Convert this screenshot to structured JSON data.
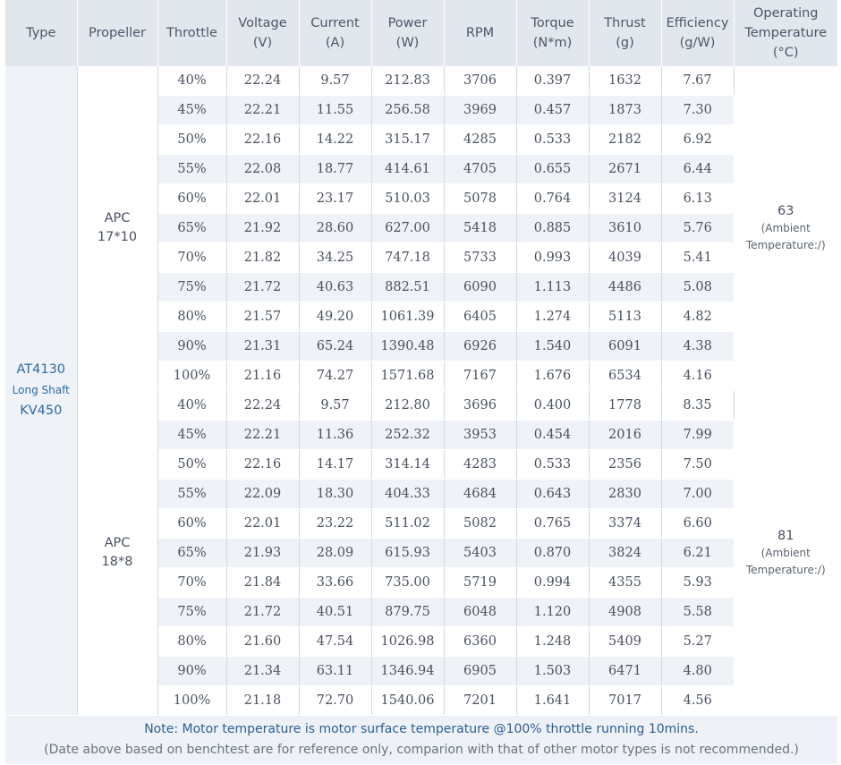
{
  "headers": [
    [
      "Type"
    ],
    [
      "Propeller"
    ],
    [
      "Throttle"
    ],
    [
      "Voltage",
      "(V)"
    ],
    [
      "Current",
      "(A)"
    ],
    [
      "Power",
      "(W)"
    ],
    [
      "RPM"
    ],
    [
      "Torque",
      "(N*m)"
    ],
    [
      "Thrust",
      "(g)"
    ],
    [
      "Efficiency",
      "(g/W)"
    ],
    [
      "Operating",
      "Temperature",
      "(°C)"
    ]
  ],
  "type": [
    "AT4130",
    "Long Shaft",
    "KV450"
  ],
  "groups": [
    {
      "propeller": [
        "APC",
        "17*10"
      ],
      "temperature": {
        "value": "63",
        "note": [
          "(Ambient",
          "Temperature:/)"
        ]
      },
      "rows": [
        [
          "40%",
          "22.24",
          "9.57",
          "212.83",
          "3706",
          "0.397",
          "1632",
          "7.67"
        ],
        [
          "45%",
          "22.21",
          "11.55",
          "256.58",
          "3969",
          "0.457",
          "1873",
          "7.30"
        ],
        [
          "50%",
          "22.16",
          "14.22",
          "315.17",
          "4285",
          "0.533",
          "2182",
          "6.92"
        ],
        [
          "55%",
          "22.08",
          "18.77",
          "414.61",
          "4705",
          "0.655",
          "2671",
          "6.44"
        ],
        [
          "60%",
          "22.01",
          "23.17",
          "510.03",
          "5078",
          "0.764",
          "3124",
          "6.13"
        ],
        [
          "65%",
          "21.92",
          "28.60",
          "627.00",
          "5418",
          "0.885",
          "3610",
          "5.76"
        ],
        [
          "70%",
          "21.82",
          "34.25",
          "747.18",
          "5733",
          "0.993",
          "4039",
          "5.41"
        ],
        [
          "75%",
          "21.72",
          "40.63",
          "882.51",
          "6090",
          "1.113",
          "4486",
          "5.08"
        ],
        [
          "80%",
          "21.57",
          "49.20",
          "1061.39",
          "6405",
          "1.274",
          "5113",
          "4.82"
        ],
        [
          "90%",
          "21.31",
          "65.24",
          "1390.48",
          "6926",
          "1.540",
          "6091",
          "4.38"
        ],
        [
          "100%",
          "21.16",
          "74.27",
          "1571.68",
          "7167",
          "1.676",
          "6534",
          "4.16"
        ]
      ]
    },
    {
      "propeller": [
        "APC",
        "18*8"
      ],
      "temperature": {
        "value": "81",
        "note": [
          "(Ambient",
          "Temperature:/)"
        ]
      },
      "rows": [
        [
          "40%",
          "22.24",
          "9.57",
          "212.80",
          "3696",
          "0.400",
          "1778",
          "8.35"
        ],
        [
          "45%",
          "22.21",
          "11.36",
          "252.32",
          "3953",
          "0.454",
          "2016",
          "7.99"
        ],
        [
          "50%",
          "22.16",
          "14.17",
          "314.14",
          "4283",
          "0.533",
          "2356",
          "7.50"
        ],
        [
          "55%",
          "22.09",
          "18.30",
          "404.33",
          "4684",
          "0.643",
          "2830",
          "7.00"
        ],
        [
          "60%",
          "22.01",
          "23.22",
          "511.02",
          "5082",
          "0.765",
          "3374",
          "6.60"
        ],
        [
          "65%",
          "21.93",
          "28.09",
          "615.93",
          "5403",
          "0.870",
          "3824",
          "6.21"
        ],
        [
          "70%",
          "21.84",
          "33.66",
          "735.00",
          "5719",
          "0.994",
          "4355",
          "5.93"
        ],
        [
          "75%",
          "21.72",
          "40.51",
          "879.75",
          "6048",
          "1.120",
          "4908",
          "5.58"
        ],
        [
          "80%",
          "21.60",
          "47.54",
          "1026.98",
          "6360",
          "1.248",
          "5409",
          "5.27"
        ],
        [
          "90%",
          "21.34",
          "63.11",
          "1346.94",
          "6905",
          "1.503",
          "6471",
          "4.80"
        ],
        [
          "100%",
          "21.18",
          "72.70",
          "1540.06",
          "7201",
          "1.641",
          "7017",
          "4.56"
        ]
      ]
    }
  ],
  "note": {
    "line1": "Note: Motor temperature is motor surface temperature @100% throttle running 10mins.",
    "line2": "(Date above based on benchtest are for reference only, comparion with that of other motor types is not recommended.)"
  }
}
